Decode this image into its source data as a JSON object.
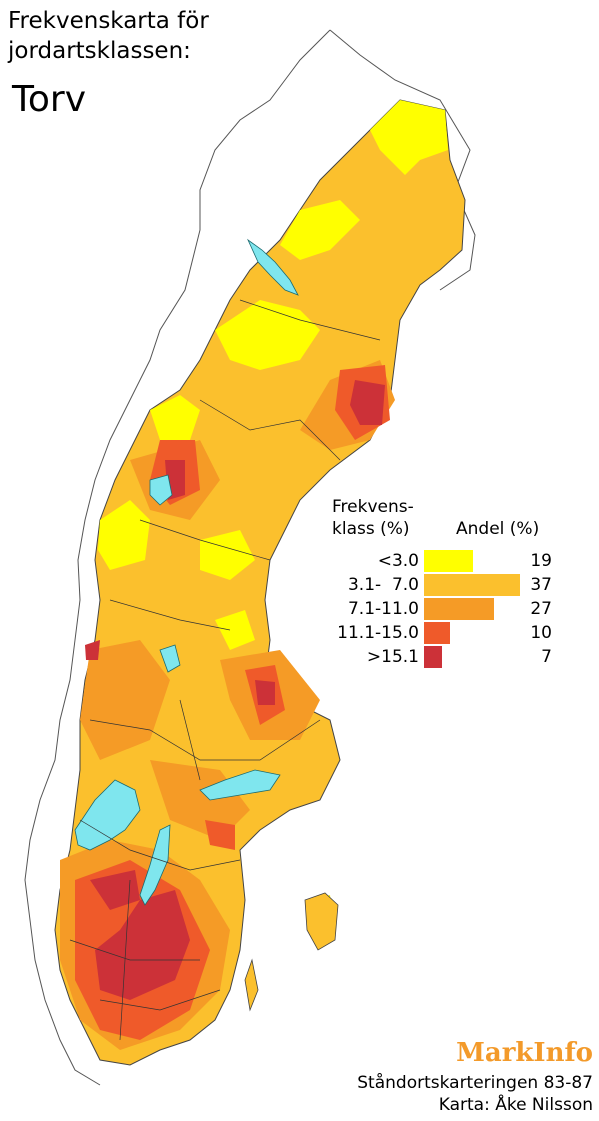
{
  "title_lines": [
    "Frekvenskarta för",
    "jordartsklassen:"
  ],
  "subtitle": "Torv",
  "legend": {
    "header_left": [
      "Frekvens-",
      "klass (%)"
    ],
    "header_right": "Andel (%)",
    "rows": [
      {
        "label": "<3.0",
        "share": 19,
        "color": "#ffff00"
      },
      {
        "label": "3.1-  7.0",
        "share": 37,
        "color": "#fbc02d"
      },
      {
        "label": "7.1-11.0",
        "share": 27,
        "color": "#f59b26"
      },
      {
        "label": "11.1-15.0",
        "share": 10,
        "color": "#ef5a2a"
      },
      {
        "label": ">15.1",
        "share": 7,
        "color": "#cc3138"
      }
    ]
  },
  "colors": {
    "lake": "#7fe6ee",
    "border": "#333333",
    "outline": "#555555"
  },
  "brand": "MarkInfo",
  "credits": [
    "Ståndortskarteringen 83-87",
    "Karta: Åke Nilsson"
  ]
}
